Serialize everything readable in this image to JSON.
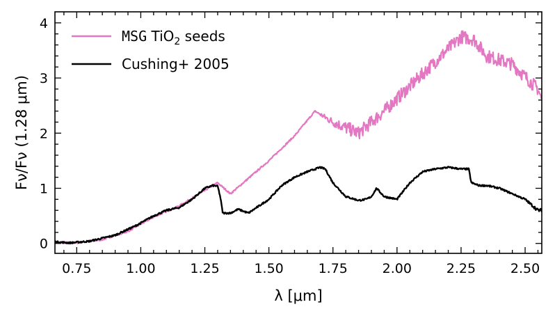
{
  "chart_data": {
    "type": "line",
    "xlabel": "λ [μm]",
    "ylabel": "Fν/Fν (1.28 μm)",
    "xlim": [
      0.665,
      2.565
    ],
    "ylim": [
      -0.18,
      4.2
    ],
    "xticks": [
      0.75,
      1.0,
      1.25,
      1.5,
      1.75,
      2.0,
      2.25,
      2.5
    ],
    "xtick_labels": [
      "0.75",
      "1.00",
      "1.25",
      "1.50",
      "1.75",
      "2.00",
      "2.25",
      "2.50"
    ],
    "yticks": [
      0,
      1,
      2,
      3,
      4
    ],
    "ytick_labels": [
      "0",
      "1",
      "2",
      "3",
      "4"
    ],
    "legend_position": "top-left",
    "series": [
      {
        "name": "MSG TiO2 seeds",
        "legend_parts": {
          "code": "MSG",
          "text": " TiO",
          "sub": "2",
          "suffix": " seeds"
        },
        "color": "#e377c2",
        "noise": 0.12,
        "noise_start": 1.7,
        "x": [
          0.665,
          0.75,
          0.85,
          0.95,
          1.05,
          1.15,
          1.25,
          1.28,
          1.3,
          1.35,
          1.4,
          1.5,
          1.6,
          1.68,
          1.75,
          1.85,
          1.95,
          2.05,
          2.15,
          2.25,
          2.3,
          2.35,
          2.45,
          2.55,
          2.565
        ],
        "y": [
          0.02,
          0.01,
          0.07,
          0.22,
          0.48,
          0.68,
          0.96,
          1.05,
          1.1,
          0.9,
          1.1,
          1.5,
          1.95,
          2.4,
          2.2,
          2.0,
          2.4,
          2.85,
          3.3,
          3.75,
          3.7,
          3.4,
          3.25,
          2.8,
          2.6
        ]
      },
      {
        "name": "Cushing+ 2005",
        "color": "#000000",
        "noise": 0.03,
        "noise_start": 2.45,
        "x": [
          0.665,
          0.72,
          0.8,
          0.9,
          0.98,
          1.05,
          1.1,
          1.15,
          1.2,
          1.25,
          1.28,
          1.3,
          1.31,
          1.32,
          1.35,
          1.38,
          1.42,
          1.5,
          1.55,
          1.6,
          1.65,
          1.7,
          1.72,
          1.75,
          1.8,
          1.85,
          1.88,
          1.9,
          1.92,
          1.95,
          2.0,
          2.05,
          2.1,
          2.15,
          2.2,
          2.25,
          2.28,
          2.29,
          2.32,
          2.35,
          2.4,
          2.45,
          2.5,
          2.55,
          2.565
        ],
        "y": [
          0.03,
          0.01,
          0.04,
          0.15,
          0.32,
          0.5,
          0.6,
          0.65,
          0.8,
          1.0,
          1.05,
          1.04,
          0.85,
          0.55,
          0.55,
          0.62,
          0.55,
          0.8,
          1.05,
          1.2,
          1.3,
          1.38,
          1.35,
          1.1,
          0.85,
          0.78,
          0.8,
          0.85,
          1.0,
          0.85,
          0.8,
          1.1,
          1.3,
          1.35,
          1.38,
          1.35,
          1.35,
          1.1,
          1.05,
          1.05,
          1.0,
          0.9,
          0.8,
          0.6,
          0.6
        ]
      }
    ]
  }
}
